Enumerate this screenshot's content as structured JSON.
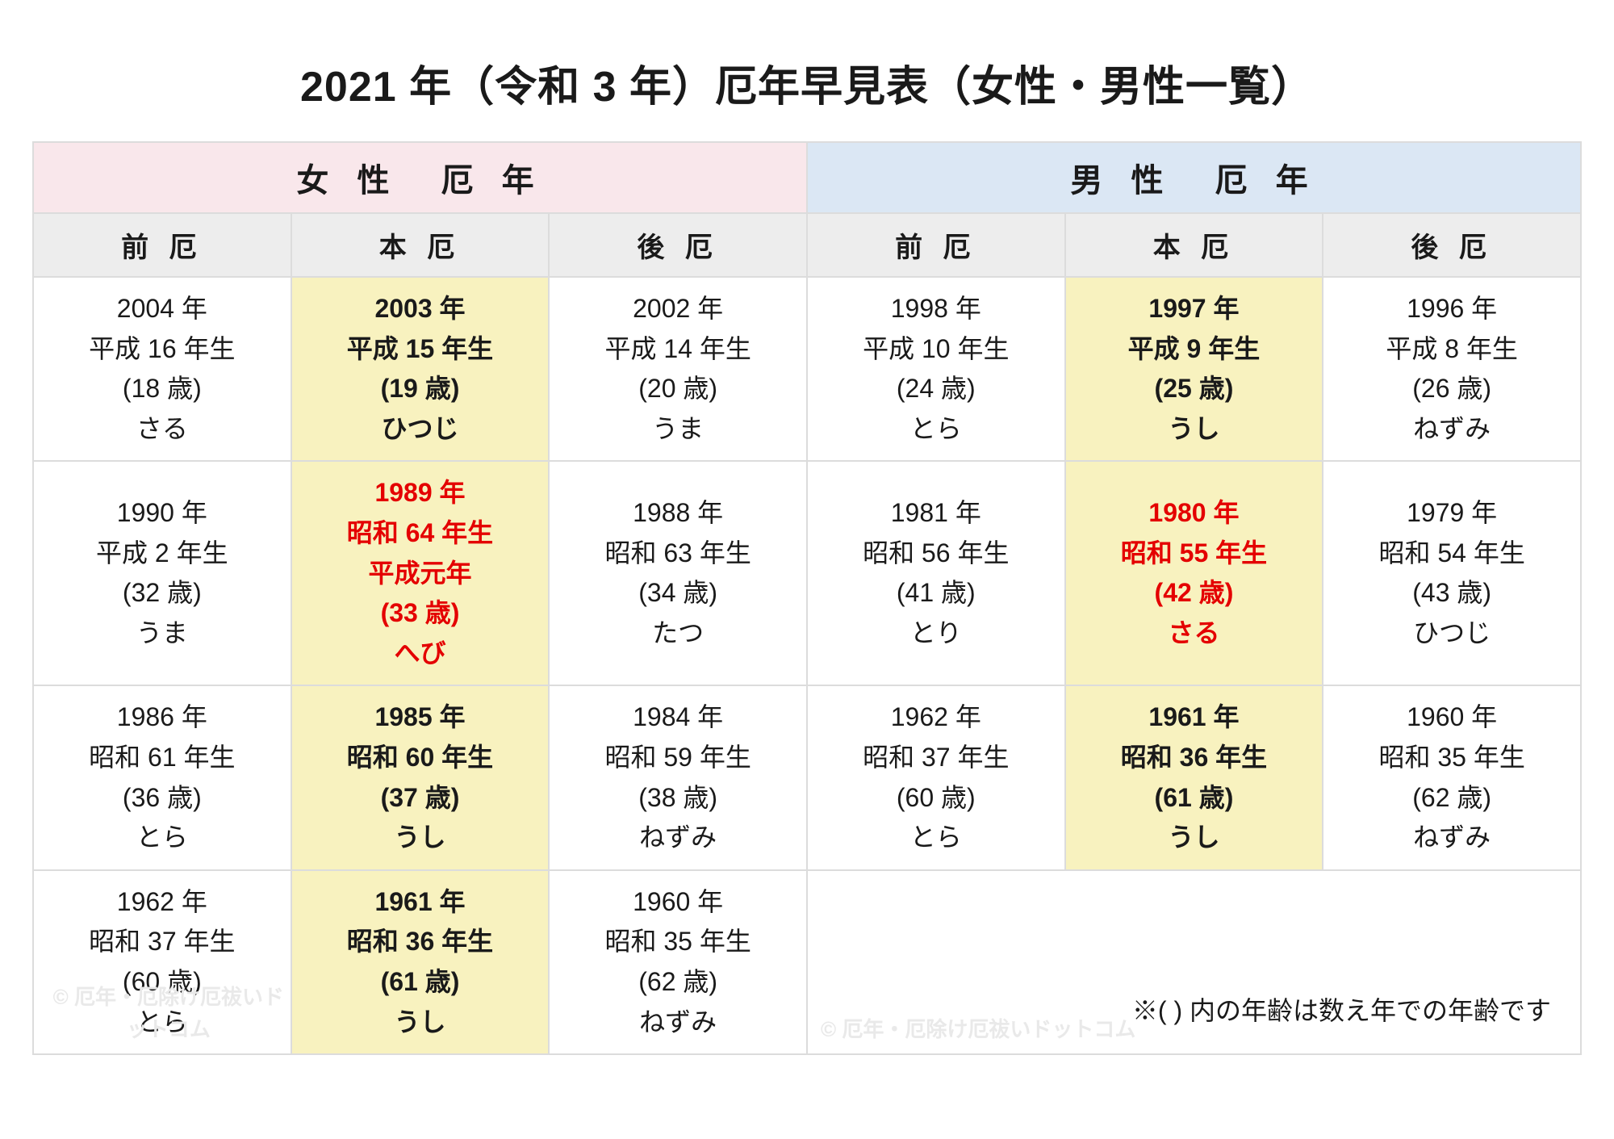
{
  "title": "2021 年（令和 3 年）厄年早見表（女性・男性一覧）",
  "colors": {
    "female_header_bg": "#f9e7eb",
    "male_header_bg": "#dbe7f4",
    "sub_header_bg": "#ededed",
    "honyaku_bg": "#f8f2bf",
    "taiyaku_text": "#e40000",
    "border": "#dcdcdc",
    "text": "#1a1a1a",
    "background": "#ffffff"
  },
  "typography": {
    "title_fontsize": 52,
    "group_head_fontsize": 40,
    "sub_head_fontsize": 34,
    "cell_fontsize": 32,
    "note_fontsize": 32
  },
  "layout": {
    "columns": 6,
    "female_cols": 3,
    "male_cols": 3
  },
  "header": {
    "female": "女 性　厄 年",
    "male": "男 性　厄 年",
    "sub": [
      "前 厄",
      "本 厄",
      "後 厄",
      "前 厄",
      "本 厄",
      "後 厄"
    ]
  },
  "rows": [
    {
      "cells": [
        {
          "lines": [
            "2004 年",
            "平成 16 年生",
            "(18 歳)",
            "さる"
          ],
          "honyaku": false,
          "taiyaku": false
        },
        {
          "lines": [
            "2003 年",
            "平成 15 年生",
            "(19 歳)",
            "ひつじ"
          ],
          "honyaku": true,
          "taiyaku": false
        },
        {
          "lines": [
            "2002 年",
            "平成 14 年生",
            "(20 歳)",
            "うま"
          ],
          "honyaku": false,
          "taiyaku": false
        },
        {
          "lines": [
            "1998 年",
            "平成 10 年生",
            "(24 歳)",
            "とら"
          ],
          "honyaku": false,
          "taiyaku": false
        },
        {
          "lines": [
            "1997 年",
            "平成 9 年生",
            "(25 歳)",
            "うし"
          ],
          "honyaku": true,
          "taiyaku": false
        },
        {
          "lines": [
            "1996 年",
            "平成 8 年生",
            "(26 歳)",
            "ねずみ"
          ],
          "honyaku": false,
          "taiyaku": false
        }
      ]
    },
    {
      "cells": [
        {
          "lines": [
            "1990 年",
            "平成 2 年生",
            "(32 歳)",
            "うま"
          ],
          "honyaku": false,
          "taiyaku": false
        },
        {
          "lines": [
            "1989 年",
            "昭和 64 年生",
            "平成元年",
            "(33 歳)",
            "へび"
          ],
          "honyaku": true,
          "taiyaku": true
        },
        {
          "lines": [
            "1988 年",
            "昭和 63 年生",
            "(34 歳)",
            "たつ"
          ],
          "honyaku": false,
          "taiyaku": false
        },
        {
          "lines": [
            "1981 年",
            "昭和 56 年生",
            "(41 歳)",
            "とり"
          ],
          "honyaku": false,
          "taiyaku": false
        },
        {
          "lines": [
            "1980 年",
            "昭和 55 年生",
            "(42 歳)",
            "さる"
          ],
          "honyaku": true,
          "taiyaku": true
        },
        {
          "lines": [
            "1979 年",
            "昭和 54 年生",
            "(43 歳)",
            "ひつじ"
          ],
          "honyaku": false,
          "taiyaku": false
        }
      ]
    },
    {
      "cells": [
        {
          "lines": [
            "1986 年",
            "昭和 61 年生",
            "(36 歳)",
            "とら"
          ],
          "honyaku": false,
          "taiyaku": false
        },
        {
          "lines": [
            "1985 年",
            "昭和 60 年生",
            "(37 歳)",
            "うし"
          ],
          "honyaku": true,
          "taiyaku": false
        },
        {
          "lines": [
            "1984 年",
            "昭和 59 年生",
            "(38 歳)",
            "ねずみ"
          ],
          "honyaku": false,
          "taiyaku": false
        },
        {
          "lines": [
            "1962 年",
            "昭和 37 年生",
            "(60 歳)",
            "とら"
          ],
          "honyaku": false,
          "taiyaku": false
        },
        {
          "lines": [
            "1961 年",
            "昭和 36 年生",
            "(61 歳)",
            "うし"
          ],
          "honyaku": true,
          "taiyaku": false
        },
        {
          "lines": [
            "1960 年",
            "昭和 35 年生",
            "(62 歳)",
            "ねずみ"
          ],
          "honyaku": false,
          "taiyaku": false
        }
      ]
    },
    {
      "cells": [
        {
          "lines": [
            "1962 年",
            "昭和 37 年生",
            "(60 歳)",
            "とら"
          ],
          "honyaku": false,
          "taiyaku": false
        },
        {
          "lines": [
            "1961 年",
            "昭和 36 年生",
            "(61 歳)",
            "うし"
          ],
          "honyaku": true,
          "taiyaku": false
        },
        {
          "lines": [
            "1960 年",
            "昭和 35 年生",
            "(62 歳)",
            "ねずみ"
          ],
          "honyaku": false,
          "taiyaku": false
        },
        {
          "note": true,
          "colspan": 3,
          "text": "※( )  内の年齢は数え年での年齢です"
        }
      ]
    }
  ],
  "watermark": "© 厄年・厄除け厄祓いドットコム"
}
